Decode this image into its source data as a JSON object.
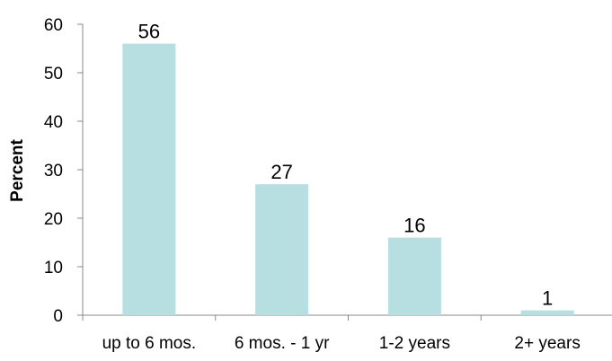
{
  "chart_data": {
    "type": "bar",
    "categories": [
      "up to 6 mos.",
      "6 mos. - 1 yr",
      "1-2 years",
      "2+ years"
    ],
    "values": [
      56,
      27,
      16,
      1
    ],
    "data_labels": [
      "56",
      "27",
      "16",
      "1"
    ],
    "title": "",
    "xlabel": "",
    "ylabel": "Percent",
    "ylim": [
      0,
      60
    ],
    "yticks": [
      0,
      10,
      20,
      30,
      40,
      50,
      60
    ],
    "grid": false,
    "legend": "none",
    "colors": {
      "bar": "#b7dee0",
      "axis": "#888888"
    }
  }
}
